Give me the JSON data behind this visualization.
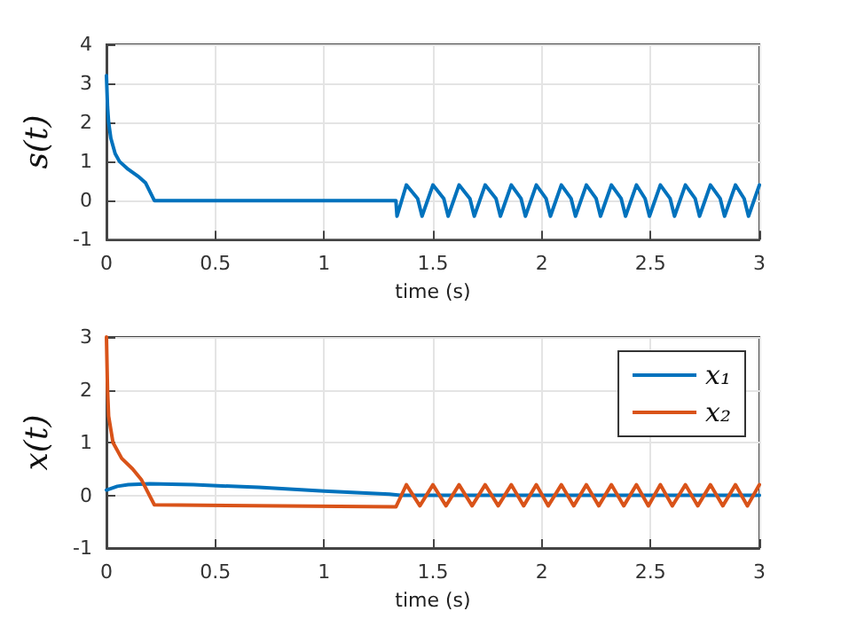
{
  "chart_data": [
    {
      "type": "line",
      "xlabel": "time (s)",
      "ylabel": "s(t)",
      "xlim": [
        0,
        3
      ],
      "xticks": [
        0,
        0.5,
        1,
        1.5,
        2,
        2.5,
        3
      ],
      "ylim": [
        -1,
        4
      ],
      "yticks": [
        -1,
        0,
        1,
        2,
        3,
        4
      ],
      "grid": true,
      "legend": false,
      "line_style": "solid",
      "marker": "none",
      "series": [
        {
          "color": "#0072bd",
          "x": [
            0,
            0.005,
            0.01,
            0.02,
            0.04,
            0.06,
            0.1,
            0.15,
            0.18,
            0.22,
            1.33,
            1.335,
            1.378,
            1.43,
            1.45,
            1.5,
            1.55,
            1.57,
            1.62,
            1.67,
            1.69,
            1.74,
            1.79,
            1.81,
            1.86,
            1.905,
            1.925,
            1.975,
            2.02,
            2.04,
            2.09,
            2.135,
            2.155,
            2.205,
            2.25,
            2.27,
            2.32,
            2.365,
            2.385,
            2.435,
            2.475,
            2.495,
            2.545,
            2.59,
            2.61,
            2.66,
            2.705,
            2.725,
            2.775,
            2.82,
            2.84,
            2.89,
            2.93,
            2.95,
            3.0
          ],
          "values": [
            3.2,
            2.4,
            2.0,
            1.6,
            1.2,
            1.0,
            0.8,
            0.6,
            0.45,
            0,
            0,
            -0.4,
            0.4,
            0.05,
            -0.4,
            0.4,
            0.05,
            -0.4,
            0.4,
            0.05,
            -0.4,
            0.4,
            0.05,
            -0.4,
            0.4,
            0.05,
            -0.4,
            0.4,
            0.05,
            -0.4,
            0.4,
            0.05,
            -0.4,
            0.4,
            0.05,
            -0.4,
            0.4,
            0.05,
            -0.4,
            0.4,
            0.05,
            -0.4,
            0.4,
            0.05,
            -0.4,
            0.4,
            0.05,
            -0.4,
            0.4,
            0.05,
            -0.4,
            0.4,
            0.05,
            -0.4,
            0.4
          ]
        }
      ]
    },
    {
      "type": "line",
      "xlabel": "time (s)",
      "ylabel": "x(t)",
      "xlim": [
        0,
        3
      ],
      "xticks": [
        0,
        0.5,
        1,
        1.5,
        2,
        2.5,
        3
      ],
      "ylim": [
        -1,
        3
      ],
      "yticks": [
        -1,
        0,
        1,
        2,
        3
      ],
      "grid": true,
      "legend": "top right",
      "line_style": "solid",
      "marker": "none",
      "series": [
        {
          "name": "x₁",
          "color": "#0072bd",
          "x": [
            0,
            0.05,
            0.1,
            0.2,
            0.4,
            0.7,
            1.0,
            1.3,
            1.35,
            3.0
          ],
          "values": [
            0.1,
            0.17,
            0.2,
            0.22,
            0.2,
            0.15,
            0.08,
            0.02,
            0,
            0
          ]
        },
        {
          "name": "x₂",
          "color": "#d95319",
          "x": [
            0,
            0.005,
            0.01,
            0.03,
            0.07,
            0.12,
            0.16,
            0.22,
            1.33,
            1.378,
            1.44,
            1.5,
            1.56,
            1.62,
            1.68,
            1.74,
            1.8,
            1.86,
            1.917,
            1.975,
            2.03,
            2.09,
            2.147,
            2.205,
            2.262,
            2.32,
            2.377,
            2.435,
            2.49,
            2.545,
            2.6,
            2.66,
            2.717,
            2.775,
            2.832,
            2.89,
            2.945,
            3.0
          ],
          "values": [
            3,
            2,
            1.5,
            1.0,
            0.7,
            0.5,
            0.3,
            -0.18,
            -0.22,
            0.2,
            -0.2,
            0.2,
            -0.2,
            0.2,
            -0.2,
            0.2,
            -0.2,
            0.2,
            -0.2,
            0.2,
            -0.2,
            0.2,
            -0.2,
            0.2,
            -0.2,
            0.2,
            -0.2,
            0.2,
            -0.2,
            0.2,
            -0.2,
            0.2,
            -0.2,
            0.2,
            -0.2,
            0.2,
            -0.2,
            0.2
          ]
        }
      ]
    }
  ]
}
